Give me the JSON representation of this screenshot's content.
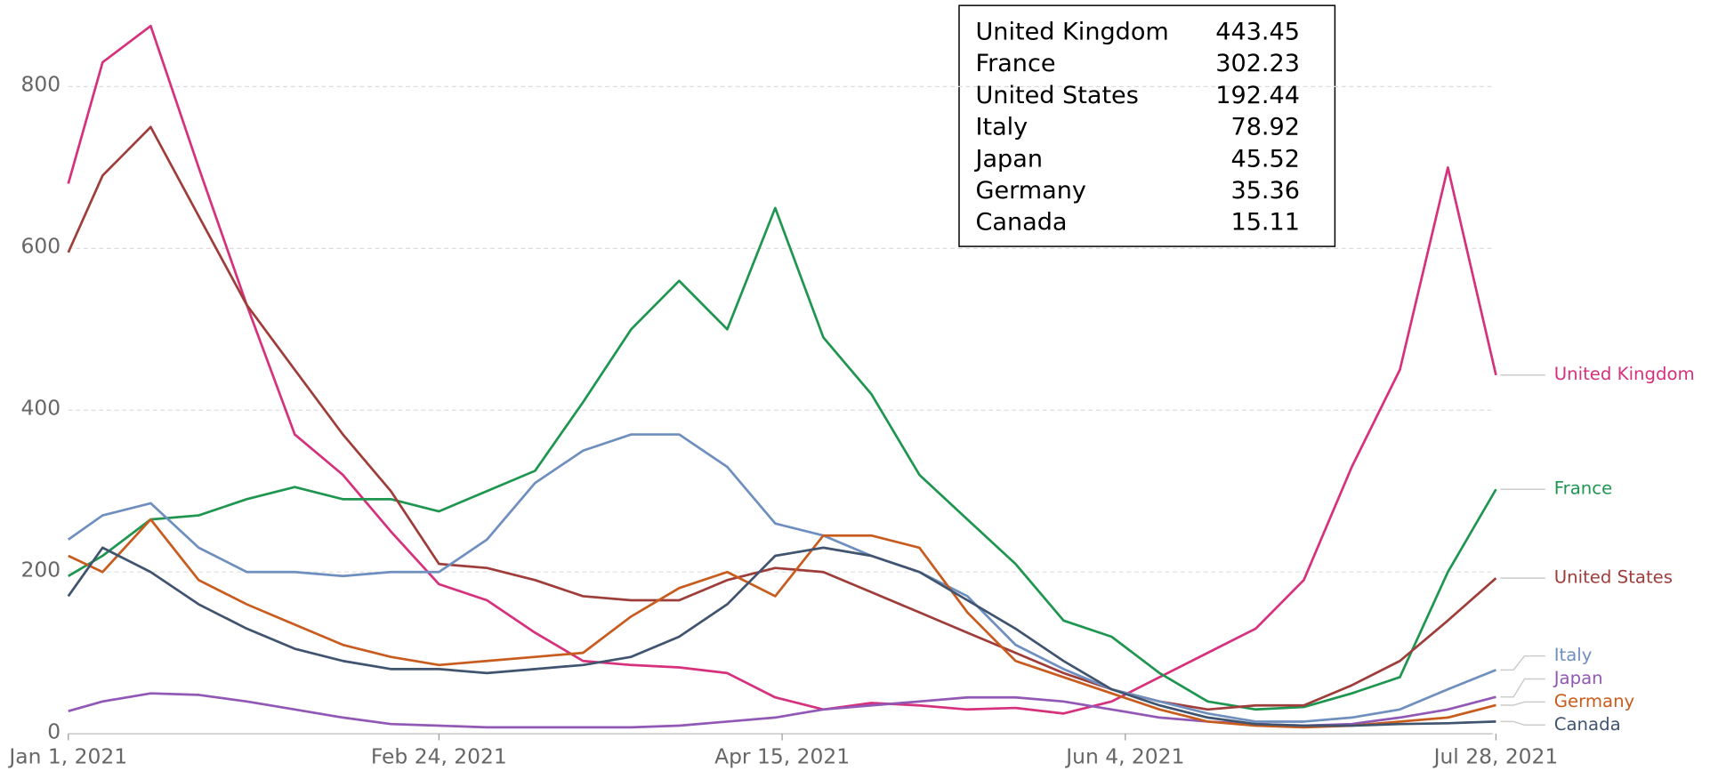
{
  "chart_data": {
    "type": "line",
    "x": [
      "2021-01-01",
      "2021-01-06",
      "2021-01-13",
      "2021-01-20",
      "2021-01-27",
      "2021-02-03",
      "2021-02-10",
      "2021-02-17",
      "2021-02-24",
      "2021-03-03",
      "2021-03-10",
      "2021-03-17",
      "2021-03-24",
      "2021-03-31",
      "2021-04-07",
      "2021-04-14",
      "2021-04-21",
      "2021-04-28",
      "2021-05-05",
      "2021-05-12",
      "2021-05-19",
      "2021-05-26",
      "2021-06-02",
      "2021-06-09",
      "2021-06-16",
      "2021-06-23",
      "2021-06-30",
      "2021-07-07",
      "2021-07-14",
      "2021-07-21",
      "2021-07-28"
    ],
    "xlim": [
      "2021-01-01",
      "2021-07-28"
    ],
    "xticks": [
      {
        "value": "2021-01-01",
        "label": "Jan 1, 2021"
      },
      {
        "value": "2021-02-24",
        "label": "Feb 24, 2021"
      },
      {
        "value": "2021-04-15",
        "label": "Apr 15, 2021"
      },
      {
        "value": "2021-06-04",
        "label": "Jun 4, 2021"
      },
      {
        "value": "2021-07-28",
        "label": "Jul 28, 2021"
      }
    ],
    "ylim": [
      0,
      880
    ],
    "yticks": [
      0,
      200,
      400,
      600,
      800
    ],
    "grid": true,
    "series": [
      {
        "name": "United Kingdom",
        "color": "#d6317c",
        "values": [
          680,
          830,
          875,
          700,
          530,
          370,
          320,
          250,
          185,
          165,
          125,
          90,
          85,
          82,
          75,
          45,
          30,
          38,
          35,
          30,
          32,
          25,
          40,
          70,
          100,
          130,
          190,
          330,
          450,
          700,
          443.45
        ]
      },
      {
        "name": "France",
        "color": "#1e9650",
        "values": [
          195,
          220,
          265,
          270,
          290,
          305,
          290,
          290,
          275,
          300,
          325,
          410,
          500,
          560,
          500,
          650,
          490,
          420,
          320,
          265,
          210,
          140,
          120,
          75,
          40,
          30,
          33,
          50,
          70,
          200,
          302.23
        ]
      },
      {
        "name": "United States",
        "color": "#9e3d3a",
        "values": [
          595,
          690,
          750,
          640,
          530,
          450,
          370,
          300,
          210,
          205,
          190,
          170,
          165,
          165,
          190,
          205,
          200,
          175,
          150,
          125,
          100,
          75,
          55,
          40,
          30,
          35,
          35,
          60,
          90,
          140,
          192.44
        ]
      },
      {
        "name": "Italy",
        "color": "#6f8fbf",
        "values": [
          240,
          270,
          285,
          230,
          200,
          200,
          195,
          200,
          200,
          240,
          310,
          350,
          370,
          370,
          330,
          260,
          245,
          220,
          200,
          170,
          110,
          80,
          55,
          40,
          25,
          15,
          15,
          20,
          30,
          55,
          78.92
        ]
      },
      {
        "name": "Japan",
        "color": "#9158b5",
        "values": [
          28,
          40,
          50,
          48,
          40,
          30,
          20,
          12,
          10,
          8,
          8,
          8,
          8,
          10,
          15,
          20,
          30,
          35,
          40,
          45,
          45,
          40,
          30,
          20,
          15,
          12,
          10,
          12,
          20,
          30,
          45.52
        ]
      },
      {
        "name": "Germany",
        "color": "#c85c1f",
        "values": [
          220,
          200,
          265,
          190,
          160,
          135,
          110,
          95,
          85,
          90,
          95,
          100,
          145,
          180,
          200,
          170,
          245,
          245,
          230,
          150,
          90,
          70,
          50,
          30,
          15,
          10,
          8,
          10,
          15,
          20,
          35.36
        ]
      },
      {
        "name": "Canada",
        "color": "#41546f",
        "values": [
          170,
          230,
          200,
          160,
          130,
          105,
          90,
          80,
          80,
          75,
          80,
          85,
          95,
          120,
          160,
          220,
          230,
          220,
          200,
          165,
          130,
          90,
          55,
          35,
          20,
          12,
          10,
          10,
          12,
          13,
          15.11
        ]
      }
    ]
  }
}
